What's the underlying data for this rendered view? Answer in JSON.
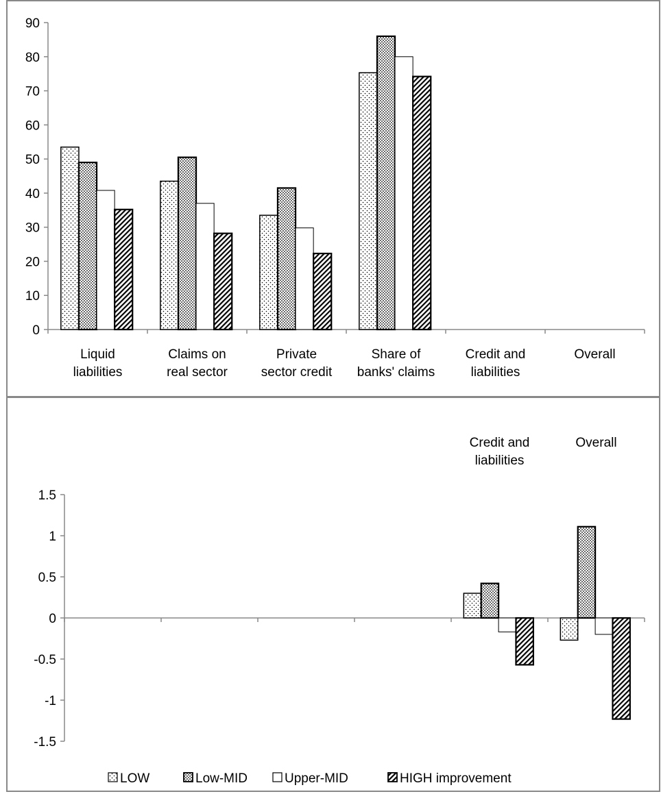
{
  "chart_data": [
    {
      "type": "bar",
      "categories": [
        "Liquid\nliabilities",
        "Claims on\nreal sector",
        "Private\nsector credit",
        "Share of\nbanks' claims",
        "Credit and\nliabilities",
        "Overall"
      ],
      "ylim": [
        0,
        90
      ],
      "yticks": [
        0,
        10,
        20,
        30,
        40,
        50,
        60,
        70,
        80,
        90
      ],
      "series": [
        {
          "name": "LOW",
          "values": [
            53.5,
            43.5,
            33.5,
            75.3,
            null,
            null
          ]
        },
        {
          "name": "Low-MID",
          "values": [
            49,
            50.5,
            41.5,
            86,
            null,
            null
          ]
        },
        {
          "name": "Upper-MID",
          "values": [
            40.8,
            37,
            29.8,
            80,
            null,
            null
          ]
        },
        {
          "name": "HIGH improvement",
          "values": [
            35.2,
            28.2,
            22.3,
            74.2,
            null,
            null
          ]
        }
      ],
      "grid": false
    },
    {
      "type": "bar",
      "categories": [
        "",
        "",
        "",
        "",
        "Credit and\nliabilities",
        "Overall"
      ],
      "ylim": [
        -1.5,
        1.5
      ],
      "yticks": [
        -1.5,
        -1,
        -0.5,
        0,
        0.5,
        1,
        1.5
      ],
      "series": [
        {
          "name": "LOW",
          "values": [
            null,
            null,
            null,
            null,
            0.3,
            -0.27
          ]
        },
        {
          "name": "Low-MID",
          "values": [
            null,
            null,
            null,
            null,
            0.42,
            1.11
          ]
        },
        {
          "name": "Upper-MID",
          "values": [
            null,
            null,
            null,
            null,
            -0.17,
            -0.2
          ]
        },
        {
          "name": "HIGH improvement",
          "values": [
            null,
            null,
            null,
            null,
            -0.57,
            -1.23
          ]
        }
      ],
      "grid": false,
      "legend": {
        "position": "bottom",
        "entries": [
          "LOW",
          "Low-MID",
          "Upper-MID",
          "HIGH improvement"
        ]
      }
    }
  ]
}
